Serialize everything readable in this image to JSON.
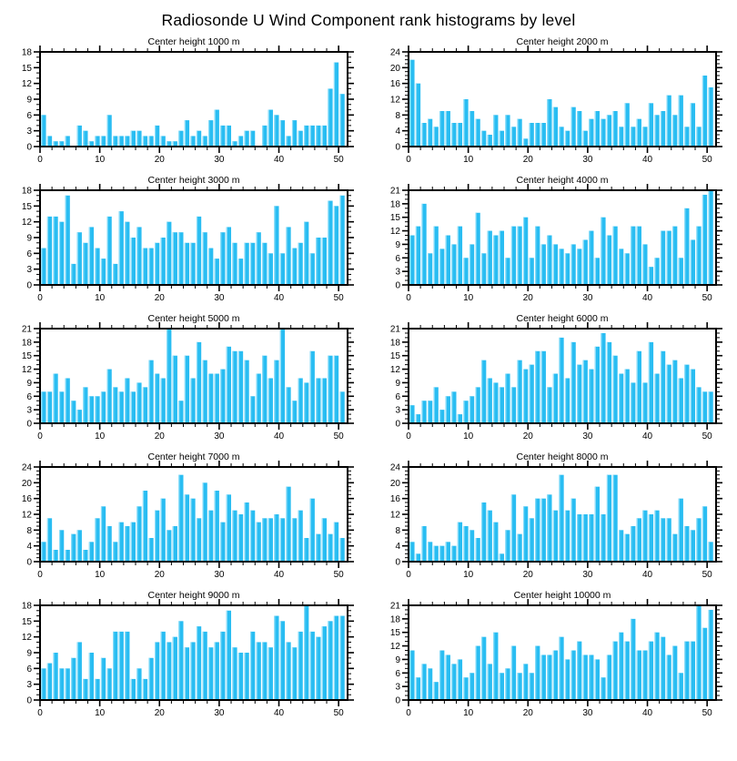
{
  "page_title": "Radiosonde U Wind Component rank histograms by level",
  "colors": {
    "bar": "#29BDF2",
    "bar_highlight": "#8ADDF9",
    "axis": "#000000"
  },
  "chart_data": [
    {
      "type": "bar",
      "title": "Center height 1000 m",
      "xlabel": "",
      "ylabel": "",
      "xlim": [
        0,
        51.5
      ],
      "ylim": [
        0,
        18
      ],
      "xticks": [
        0,
        10,
        20,
        30,
        40,
        50
      ],
      "yticks": [
        0,
        3,
        6,
        9,
        12,
        15,
        18
      ],
      "values": [
        6,
        2,
        1,
        1,
        2,
        0,
        4,
        3,
        1,
        2,
        2,
        6,
        2,
        2,
        2,
        3,
        3,
        2,
        2,
        4,
        2,
        1,
        1,
        3,
        5,
        2,
        3,
        2,
        5,
        7,
        4,
        4,
        1,
        2,
        3,
        3,
        0,
        4,
        7,
        6,
        5,
        2,
        5,
        3,
        4,
        4,
        4,
        4,
        11,
        16,
        10
      ]
    },
    {
      "type": "bar",
      "title": "Center height 2000 m",
      "xlabel": "",
      "ylabel": "",
      "xlim": [
        0,
        51.5
      ],
      "ylim": [
        0,
        24
      ],
      "xticks": [
        0,
        10,
        20,
        30,
        40,
        50
      ],
      "yticks": [
        0,
        4,
        8,
        12,
        16,
        20,
        24
      ],
      "values": [
        22,
        16,
        6,
        7,
        5,
        9,
        9,
        6,
        6,
        12,
        9,
        7,
        4,
        3,
        8,
        4,
        8,
        5,
        7,
        2,
        6,
        6,
        6,
        12,
        10,
        5,
        4,
        10,
        9,
        4,
        7,
        9,
        7,
        8,
        9,
        5,
        11,
        5,
        7,
        5,
        11,
        8,
        9,
        13,
        8,
        13,
        5,
        11,
        5,
        18,
        15
      ]
    },
    {
      "type": "bar",
      "title": "Center height 3000 m",
      "xlabel": "",
      "ylabel": "",
      "xlim": [
        0,
        51.5
      ],
      "ylim": [
        0,
        18
      ],
      "xticks": [
        0,
        10,
        20,
        30,
        40,
        50
      ],
      "yticks": [
        0,
        3,
        6,
        9,
        12,
        15,
        18
      ],
      "values": [
        7,
        13,
        13,
        12,
        17,
        4,
        10,
        8,
        11,
        7,
        5,
        13,
        4,
        14,
        12,
        9,
        11,
        7,
        7,
        8,
        9,
        12,
        10,
        10,
        8,
        8,
        13,
        10,
        7,
        5,
        10,
        11,
        8,
        5,
        8,
        8,
        10,
        8,
        6,
        15,
        6,
        11,
        7,
        8,
        12,
        6,
        9,
        9,
        16,
        15,
        17
      ]
    },
    {
      "type": "bar",
      "title": "Center height 4000 m",
      "xlabel": "",
      "ylabel": "",
      "xlim": [
        0,
        51.5
      ],
      "ylim": [
        0,
        21
      ],
      "xticks": [
        0,
        10,
        20,
        30,
        40,
        50
      ],
      "yticks": [
        0,
        3,
        6,
        9,
        12,
        15,
        18,
        21
      ],
      "values": [
        11,
        13,
        18,
        7,
        13,
        8,
        11,
        9,
        13,
        6,
        9,
        16,
        7,
        12,
        11,
        12,
        6,
        13,
        13,
        15,
        6,
        13,
        9,
        11,
        9,
        8,
        7,
        9,
        8,
        10,
        12,
        6,
        15,
        11,
        13,
        8,
        7,
        13,
        13,
        9,
        4,
        6,
        12,
        12,
        13,
        6,
        17,
        10,
        13,
        20,
        21
      ]
    },
    {
      "type": "bar",
      "title": "Center height 5000 m",
      "xlabel": "",
      "ylabel": "",
      "xlim": [
        0,
        51.5
      ],
      "ylim": [
        0,
        21
      ],
      "xticks": [
        0,
        10,
        20,
        30,
        40,
        50
      ],
      "yticks": [
        0,
        3,
        6,
        9,
        12,
        15,
        18,
        21
      ],
      "values": [
        7,
        7,
        11,
        7,
        10,
        5,
        3,
        8,
        6,
        6,
        7,
        12,
        8,
        7,
        10,
        7,
        9,
        8,
        14,
        11,
        10,
        21,
        15,
        5,
        15,
        10,
        18,
        14,
        11,
        11,
        12,
        17,
        16,
        16,
        14,
        6,
        11,
        15,
        10,
        14,
        21,
        8,
        5,
        10,
        9,
        16,
        10,
        10,
        15,
        15,
        7
      ]
    },
    {
      "type": "bar",
      "title": "Center height 6000 m",
      "xlabel": "",
      "ylabel": "",
      "xlim": [
        0,
        51.5
      ],
      "ylim": [
        0,
        21
      ],
      "xticks": [
        0,
        10,
        20,
        30,
        40,
        50
      ],
      "yticks": [
        0,
        3,
        6,
        9,
        12,
        15,
        18,
        21
      ],
      "values": [
        4,
        2,
        5,
        5,
        8,
        3,
        6,
        7,
        2,
        5,
        6,
        8,
        14,
        10,
        9,
        8,
        11,
        8,
        14,
        12,
        13,
        16,
        16,
        8,
        11,
        19,
        10,
        18,
        13,
        14,
        12,
        17,
        20,
        18,
        15,
        11,
        12,
        9,
        16,
        9,
        18,
        11,
        16,
        13,
        14,
        10,
        13,
        12,
        8,
        7,
        7
      ]
    },
    {
      "type": "bar",
      "title": "Center height 7000 m",
      "xlabel": "",
      "ylabel": "",
      "xlim": [
        0,
        51.5
      ],
      "ylim": [
        0,
        24
      ],
      "xticks": [
        0,
        10,
        20,
        30,
        40,
        50
      ],
      "yticks": [
        0,
        4,
        8,
        12,
        16,
        20,
        24
      ],
      "values": [
        5,
        11,
        3,
        8,
        3,
        7,
        8,
        3,
        5,
        11,
        14,
        9,
        5,
        10,
        9,
        10,
        14,
        18,
        6,
        13,
        16,
        8,
        9,
        22,
        17,
        16,
        11,
        20,
        13,
        18,
        10,
        17,
        13,
        12,
        15,
        13,
        10,
        11,
        11,
        12,
        11,
        19,
        11,
        13,
        6,
        16,
        7,
        11,
        7,
        10,
        6
      ]
    },
    {
      "type": "bar",
      "title": "Center height 8000 m",
      "xlabel": "",
      "ylabel": "",
      "xlim": [
        0,
        51.5
      ],
      "ylim": [
        0,
        24
      ],
      "xticks": [
        0,
        10,
        20,
        30,
        40,
        50
      ],
      "yticks": [
        0,
        4,
        8,
        12,
        16,
        20,
        24
      ],
      "values": [
        5,
        2,
        9,
        5,
        4,
        4,
        5,
        4,
        10,
        9,
        8,
        6,
        15,
        13,
        10,
        2,
        8,
        17,
        7,
        14,
        11,
        16,
        16,
        17,
        13,
        22,
        13,
        16,
        12,
        12,
        12,
        19,
        12,
        22,
        22,
        8,
        7,
        9,
        11,
        13,
        12,
        13,
        11,
        11,
        7,
        16,
        9,
        8,
        11,
        14,
        5
      ]
    },
    {
      "type": "bar",
      "title": "Center height 9000 m",
      "xlabel": "",
      "ylabel": "",
      "xlim": [
        0,
        51.5
      ],
      "ylim": [
        0,
        18
      ],
      "xticks": [
        0,
        10,
        20,
        30,
        40,
        50
      ],
      "yticks": [
        0,
        3,
        6,
        9,
        12,
        15,
        18
      ],
      "values": [
        6,
        7,
        9,
        6,
        6,
        8,
        11,
        4,
        9,
        4,
        8,
        6,
        13,
        13,
        13,
        4,
        6,
        4,
        8,
        11,
        13,
        11,
        12,
        15,
        10,
        11,
        14,
        13,
        10,
        11,
        13,
        17,
        10,
        9,
        9,
        13,
        11,
        11,
        10,
        16,
        15,
        11,
        10,
        13,
        18,
        13,
        12,
        14,
        15,
        16,
        16
      ]
    },
    {
      "type": "bar",
      "title": "Center height 10000 m",
      "xlabel": "",
      "ylabel": "",
      "xlim": [
        0,
        51.5
      ],
      "ylim": [
        0,
        21
      ],
      "xticks": [
        0,
        10,
        20,
        30,
        40,
        50
      ],
      "yticks": [
        0,
        3,
        6,
        9,
        12,
        15,
        18,
        21
      ],
      "values": [
        11,
        5,
        8,
        7,
        4,
        11,
        10,
        8,
        9,
        5,
        6,
        12,
        14,
        8,
        15,
        6,
        7,
        12,
        6,
        8,
        6,
        12,
        10,
        10,
        11,
        14,
        9,
        11,
        13,
        10,
        10,
        9,
        5,
        10,
        13,
        15,
        13,
        18,
        11,
        11,
        13,
        15,
        14,
        10,
        12,
        6,
        13,
        13,
        21,
        16,
        20
      ]
    }
  ]
}
